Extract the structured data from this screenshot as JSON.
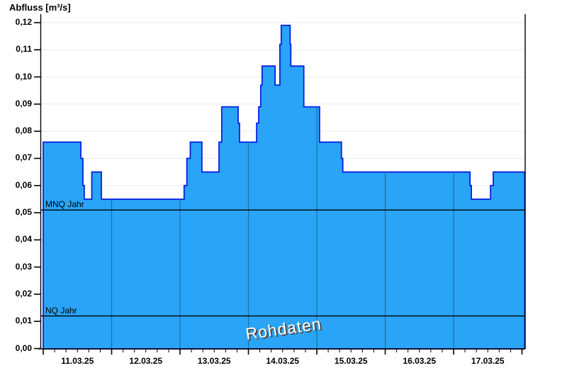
{
  "title": "Abfluss [m³/s]",
  "watermark": "Rohdaten",
  "reference_lines": [
    {
      "label": "MNQ Jahr",
      "value": 0.051
    },
    {
      "label": "NQ Jahr",
      "value": 0.012
    }
  ],
  "y_axis": {
    "tick_labels": [
      "0,00",
      "0,01",
      "0,02",
      "0,03",
      "0,04",
      "0,05",
      "0,06",
      "0,07",
      "0,08",
      "0,09",
      "0,10",
      "0,11",
      "0,12"
    ],
    "min": 0.0,
    "max": 0.12,
    "step": 0.01
  },
  "x_axis": {
    "tick_labels": [
      "11.03.25",
      "12.03.25",
      "13.03.25",
      "14.03.25",
      "15.03.25",
      "16.03.25",
      "17.03.25"
    ],
    "minor_ticks_per_day": 6
  },
  "colors": {
    "fill": "#29A4F6",
    "series_border": "#0B1FE0",
    "h_gridline": "#EBEBEB",
    "day_line_in_fill": "#1E6FA6",
    "frame": "#000000",
    "watermark_text": "#FFFFFF",
    "watermark_shadow": "#4D4D4D"
  },
  "chart_data": {
    "type": "area",
    "title": "Abfluss [m³/s]",
    "ylabel": "Abfluss [m³/s]",
    "xlabel": "",
    "series_name": "Rohdaten",
    "ylim": [
      0.0,
      0.12
    ],
    "x_range_days": [
      "11.03.25 00:00",
      "18.03.25 00:00"
    ],
    "x_tick_labels": [
      "11.03.25",
      "12.03.25",
      "13.03.25",
      "14.03.25",
      "15.03.25",
      "16.03.25",
      "17.03.25"
    ],
    "grid": "horizontal 0.01 steps, vertical per day",
    "legend_position": "none",
    "reference_lines": [
      {
        "label": "MNQ Jahr",
        "value": 0.051
      },
      {
        "label": "NQ Jahr",
        "value": 0.012
      }
    ],
    "t_unit": "days since 11.03.25 00:00",
    "t_end": 7.04,
    "steps": [
      {
        "t": 0.0,
        "v": 0.076
      },
      {
        "t": 0.55,
        "v": 0.07
      },
      {
        "t": 0.58,
        "v": 0.06
      },
      {
        "t": 0.6,
        "v": 0.055
      },
      {
        "t": 0.71,
        "v": 0.065
      },
      {
        "t": 0.85,
        "v": 0.055
      },
      {
        "t": 2.06,
        "v": 0.06
      },
      {
        "t": 2.1,
        "v": 0.07
      },
      {
        "t": 2.15,
        "v": 0.076
      },
      {
        "t": 2.32,
        "v": 0.065
      },
      {
        "t": 2.57,
        "v": 0.076
      },
      {
        "t": 2.61,
        "v": 0.089
      },
      {
        "t": 2.85,
        "v": 0.083
      },
      {
        "t": 2.87,
        "v": 0.076
      },
      {
        "t": 3.12,
        "v": 0.083
      },
      {
        "t": 3.15,
        "v": 0.089
      },
      {
        "t": 3.18,
        "v": 0.097
      },
      {
        "t": 3.2,
        "v": 0.104
      },
      {
        "t": 3.39,
        "v": 0.097
      },
      {
        "t": 3.46,
        "v": 0.112
      },
      {
        "t": 3.48,
        "v": 0.119
      },
      {
        "t": 3.61,
        "v": 0.112
      },
      {
        "t": 3.62,
        "v": 0.104
      },
      {
        "t": 3.81,
        "v": 0.089
      },
      {
        "t": 4.04,
        "v": 0.076
      },
      {
        "t": 4.36,
        "v": 0.07
      },
      {
        "t": 4.38,
        "v": 0.065
      },
      {
        "t": 6.24,
        "v": 0.06
      },
      {
        "t": 6.26,
        "v": 0.055
      },
      {
        "t": 6.54,
        "v": 0.06
      },
      {
        "t": 6.58,
        "v": 0.065
      }
    ]
  }
}
